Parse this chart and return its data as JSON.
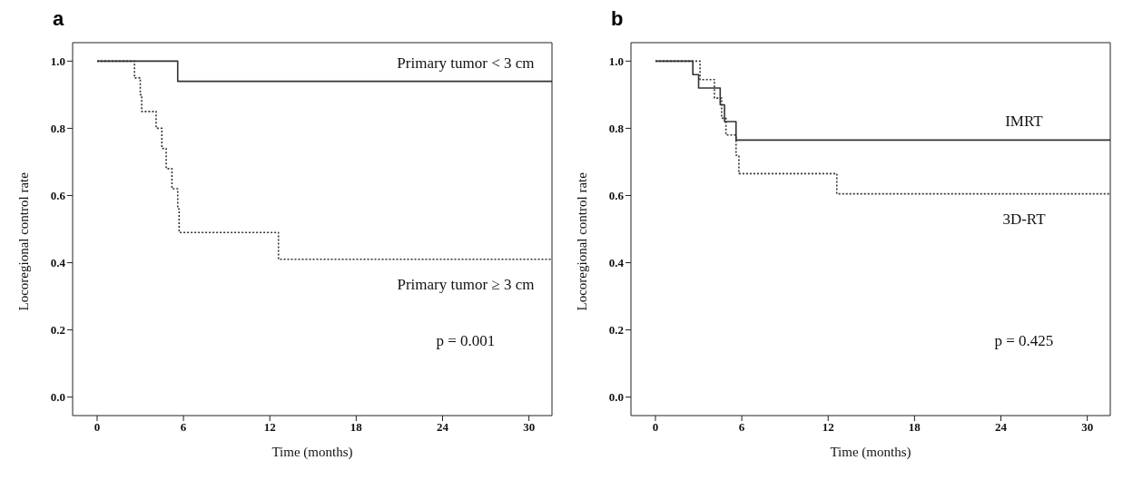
{
  "chart_data": [
    {
      "type": "step",
      "title": "a",
      "xlabel": "Time (months)",
      "ylabel": "Locoregional control rate",
      "xlim": [
        -1.7,
        31.6
      ],
      "ylim": [
        -0.055,
        1.055
      ],
      "xticks": [
        0,
        6,
        12,
        18,
        24,
        30
      ],
      "yticks": [
        {
          "value": 0,
          "label": "0.0"
        },
        {
          "value": 0.2,
          "label": "0.2"
        },
        {
          "value": 0.4,
          "label": "0.4"
        },
        {
          "value": 0.6,
          "label": "0.6"
        },
        {
          "value": 0.8,
          "label": "0.8"
        },
        {
          "value": 1,
          "label": "1.0"
        }
      ],
      "grid": false,
      "legend": false,
      "annotations": [
        "p = 0.001"
      ],
      "series": [
        {
          "name": "Primary tumor < 3 cm",
          "color": "#333333",
          "line_style": "solid",
          "x": [
            0,
            5.6,
            31.6
          ],
          "values": [
            1,
            0.94,
            0.94
          ]
        },
        {
          "name": "Primary tumor ≥ 3 cm",
          "color": "#333333",
          "line_style": "dotted",
          "x": [
            0,
            2.6,
            3.0,
            3.1,
            4.1,
            4.5,
            4.8,
            5.2,
            5.6,
            5.7,
            12.6,
            31.6
          ],
          "values": [
            1,
            0.95,
            0.9,
            0.85,
            0.8,
            0.74,
            0.68,
            0.62,
            0.56,
            0.49,
            0.41,
            0.41
          ]
        }
      ]
    },
    {
      "type": "step",
      "title": "b",
      "xlabel": "Time (months)",
      "ylabel": "Locoregional control rate",
      "xlim": [
        -1.7,
        31.6
      ],
      "ylim": [
        -0.055,
        1.055
      ],
      "xticks": [
        0,
        6,
        12,
        18,
        24,
        30
      ],
      "yticks": [
        {
          "value": 0,
          "label": "0.0"
        },
        {
          "value": 0.2,
          "label": "0.2"
        },
        {
          "value": 0.4,
          "label": "0.4"
        },
        {
          "value": 0.6,
          "label": "0.6"
        },
        {
          "value": 0.8,
          "label": "0.8"
        },
        {
          "value": 1,
          "label": "1.0"
        }
      ],
      "grid": false,
      "legend": false,
      "annotations": [
        "p = 0.425"
      ],
      "series": [
        {
          "name": "IMRT",
          "color": "#333333",
          "line_style": "solid",
          "x": [
            0,
            2.6,
            3.0,
            4.5,
            4.8,
            5.6,
            31.6
          ],
          "values": [
            1,
            0.96,
            0.92,
            0.87,
            0.82,
            0.765,
            0.765
          ]
        },
        {
          "name": "3D-RT",
          "color": "#333333",
          "line_style": "dotted",
          "x": [
            0,
            3.1,
            4.1,
            4.6,
            4.9,
            5.6,
            5.8,
            12.6,
            31.6
          ],
          "values": [
            1,
            0.945,
            0.89,
            0.83,
            0.78,
            0.72,
            0.665,
            0.605,
            0.605
          ]
        }
      ]
    }
  ]
}
